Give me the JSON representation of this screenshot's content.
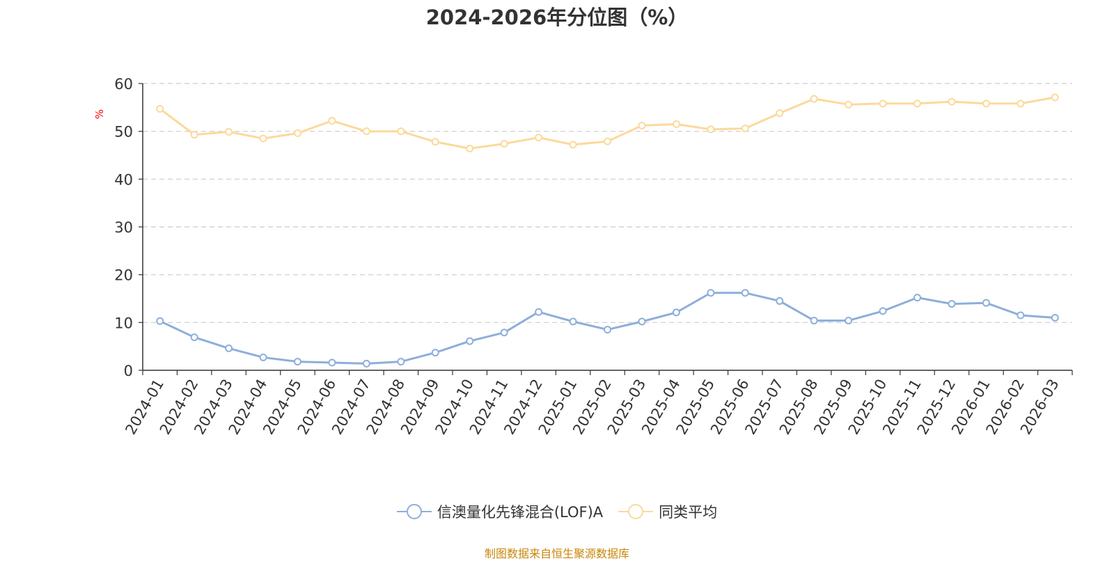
{
  "chart_data": {
    "type": "line",
    "title": "2024-2026年分位图（%）",
    "ylabel": "%",
    "xlabel": "",
    "ylim": [
      0,
      60
    ],
    "yticks": [
      0,
      10,
      20,
      30,
      40,
      50,
      60
    ],
    "grid": true,
    "legend_position": "bottom",
    "categories": [
      "2024-01",
      "2024-02",
      "2024-03",
      "2024-04",
      "2024-05",
      "2024-06",
      "2024-07",
      "2024-08",
      "2024-09",
      "2024-10",
      "2024-11",
      "2024-12",
      "2025-01",
      "2025-02",
      "2025-03",
      "2025-04",
      "2025-05",
      "2025-06",
      "2025-07",
      "2025-08",
      "2025-09",
      "2025-10",
      "2025-11",
      "2025-12",
      "2026-01",
      "2026-02",
      "2026-03"
    ],
    "series": [
      {
        "name": "信澳量化先锋混合(LOF)A",
        "color": "#8eaedb",
        "values": [
          10.3,
          6.9,
          4.6,
          2.7,
          1.8,
          1.6,
          1.4,
          1.8,
          3.7,
          6.1,
          7.9,
          12.2,
          10.2,
          8.5,
          10.2,
          12.1,
          16.2,
          16.2,
          14.5,
          10.4,
          10.4,
          12.4,
          15.2,
          13.9,
          14.1,
          11.5,
          11.0
        ]
      },
      {
        "name": "同类平均",
        "color": "#fcd99b",
        "values": [
          54.7,
          49.3,
          49.9,
          48.5,
          49.6,
          52.2,
          50.0,
          50.0,
          47.8,
          46.4,
          47.4,
          48.7,
          47.2,
          47.9,
          51.2,
          51.5,
          50.4,
          50.6,
          53.8,
          56.8,
          55.6,
          55.8,
          55.8,
          56.2,
          55.8,
          55.8,
          57.1
        ]
      }
    ]
  },
  "source_note": "制图数据来自恒生聚源数据库"
}
